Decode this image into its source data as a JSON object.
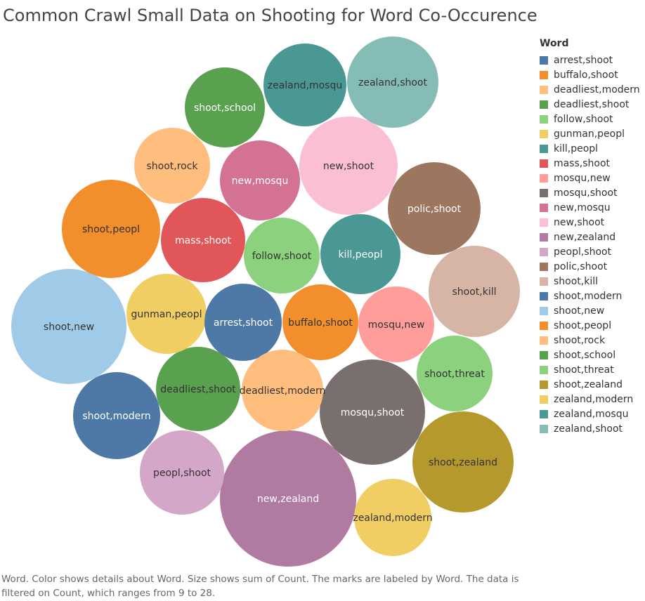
{
  "title": "Common Crawl Small Data on Shooting for Word Co-Occurence",
  "caption": "Word.  Color shows details about Word.  Size shows sum of Count.  The marks are labeled by Word. The data is filtered on Count, which ranges from 9 to 28.",
  "legend": {
    "title": "Word",
    "placement": "right",
    "items": [
      {
        "label": "arrest,shoot",
        "color": "#4e79a7"
      },
      {
        "label": "buffalo,shoot",
        "color": "#f28e2b"
      },
      {
        "label": "deadliest,modern",
        "color": "#ffbe7d"
      },
      {
        "label": "deadliest,shoot",
        "color": "#59a14f"
      },
      {
        "label": "follow,shoot",
        "color": "#8cd17d"
      },
      {
        "label": "gunman,peopl",
        "color": "#f1ce63"
      },
      {
        "label": "kill,peopl",
        "color": "#499894"
      },
      {
        "label": "mass,shoot",
        "color": "#e15759"
      },
      {
        "label": "mosqu,new",
        "color": "#ff9d9a"
      },
      {
        "label": "mosqu,shoot",
        "color": "#79706e"
      },
      {
        "label": "new,mosqu",
        "color": "#d37295"
      },
      {
        "label": "new,shoot",
        "color": "#fabfd2"
      },
      {
        "label": "new,zealand",
        "color": "#b07aa1"
      },
      {
        "label": "peopl,shoot",
        "color": "#d4a6c8"
      },
      {
        "label": "polic,shoot",
        "color": "#9d7660"
      },
      {
        "label": "shoot,kill",
        "color": "#d7b5a6"
      },
      {
        "label": "shoot,modern",
        "color": "#4e79a7"
      },
      {
        "label": "shoot,new",
        "color": "#a0cbe8"
      },
      {
        "label": "shoot,peopl",
        "color": "#f28e2b"
      },
      {
        "label": "shoot,rock",
        "color": "#ffbe7d"
      },
      {
        "label": "shoot,school",
        "color": "#59a14f"
      },
      {
        "label": "shoot,threat",
        "color": "#8cd17d"
      },
      {
        "label": "shoot,zealand",
        "color": "#b6992d"
      },
      {
        "label": "zealand,modern",
        "color": "#f1ce63"
      },
      {
        "label": "zealand,mosqu",
        "color": "#499894"
      },
      {
        "label": "zealand,shoot",
        "color": "#86bcb6"
      }
    ]
  },
  "chart_data": {
    "type": "packed-bubble",
    "size_measure": "Count",
    "count_range": [
      9,
      28
    ],
    "bubbles": [
      {
        "word": "new,zealand",
        "count": 28,
        "label_color": "#ffffff"
      },
      {
        "word": "shoot,new",
        "count": 20,
        "label_color": "#333333"
      },
      {
        "word": "shoot,peopl",
        "count": 15,
        "label_color": "#333333"
      },
      {
        "word": "shoot,zealand",
        "count": 16,
        "label_color": "#333333"
      },
      {
        "word": "mosqu,shoot",
        "count": 17,
        "label_color": "#ffffff"
      },
      {
        "word": "new,shoot",
        "count": 17,
        "label_color": "#333333"
      },
      {
        "word": "polic,shoot",
        "count": 14,
        "label_color": "#ffffff"
      },
      {
        "word": "shoot,kill",
        "count": 13.5,
        "label_color": "#333333"
      },
      {
        "word": "zealand,shoot",
        "count": 13.5,
        "label_color": "#333333"
      },
      {
        "word": "zealand,mosqu",
        "count": 11.5,
        "label_color": "#333333"
      },
      {
        "word": "shoot,modern",
        "count": 11.5,
        "label_color": "#ffffff"
      },
      {
        "word": "deadliest,shoot",
        "count": 11,
        "label_color": "#333333"
      },
      {
        "word": "shoot,school",
        "count": 10.5,
        "label_color": "#ffffff"
      },
      {
        "word": "new,mosqu",
        "count": 10,
        "label_color": "#ffffff"
      },
      {
        "word": "mass,shoot",
        "count": 11,
        "label_color": "#ffffff"
      },
      {
        "word": "kill,peopl",
        "count": 10.5,
        "label_color": "#ffffff"
      },
      {
        "word": "follow,shoot",
        "count": 9.5,
        "label_color": "#333333"
      },
      {
        "word": "gunman,peopl",
        "count": 10,
        "label_color": "#333333"
      },
      {
        "word": "arrest,shoot",
        "count": 9.5,
        "label_color": "#ffffff"
      },
      {
        "word": "buffalo,shoot",
        "count": 9.5,
        "label_color": "#333333"
      },
      {
        "word": "mosqu,new",
        "count": 9.5,
        "label_color": "#333333"
      },
      {
        "word": "shoot,threat",
        "count": 9.5,
        "label_color": "#333333"
      },
      {
        "word": "deadliest,modern",
        "count": 10,
        "label_color": "#333333"
      },
      {
        "word": "peopl,shoot",
        "count": 10,
        "label_color": "#333333"
      },
      {
        "word": "shoot,rock",
        "count": 9.5,
        "label_color": "#333333"
      },
      {
        "word": "zealand,modern",
        "count": 9.5,
        "label_color": "#333333"
      }
    ]
  }
}
